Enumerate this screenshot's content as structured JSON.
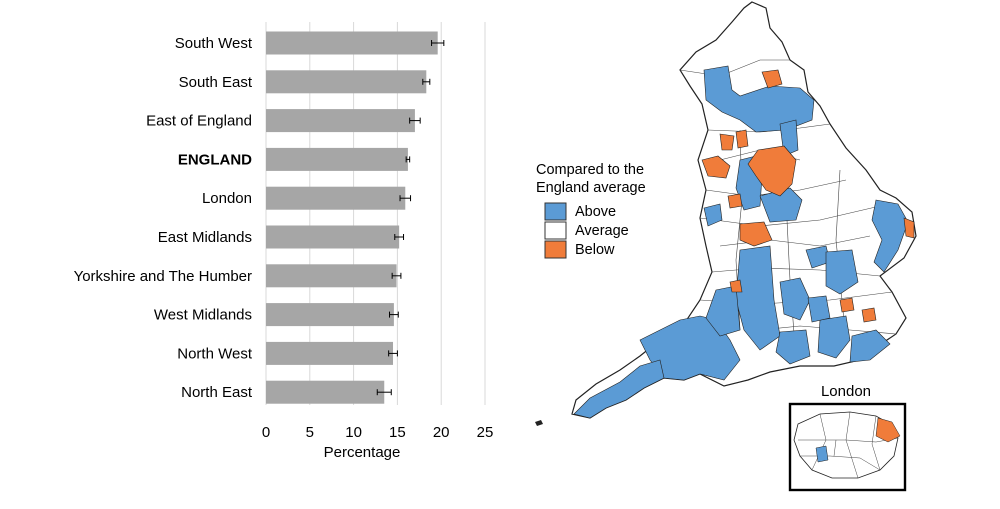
{
  "chart_data": {
    "type": "bar",
    "orientation": "horizontal",
    "categories": [
      "South West",
      "South East",
      "East of England",
      "ENGLAND",
      "London",
      "East Midlands",
      "Yorkshire and The Humber",
      "West Midlands",
      "North West",
      "North East"
    ],
    "highlight_category": "ENGLAND",
    "values": [
      19.6,
      18.3,
      17.0,
      16.2,
      15.9,
      15.2,
      14.9,
      14.6,
      14.5,
      13.5
    ],
    "error_margin": [
      0.7,
      0.4,
      0.6,
      0.2,
      0.6,
      0.5,
      0.5,
      0.5,
      0.5,
      0.8
    ],
    "xlabel": "Percentage",
    "xlim": [
      0,
      25
    ],
    "xticks": [
      0,
      5,
      10,
      15,
      20,
      25
    ],
    "grid": "vertical",
    "bar_color": "#a6a6a6"
  },
  "map": {
    "legend_title_line1": "Compared to the",
    "legend_title_line2": "England average",
    "legend_items": [
      {
        "label": "Above",
        "color": "#5b9bd5"
      },
      {
        "label": "Average",
        "color": "#ffffff"
      },
      {
        "label": "Below",
        "color": "#f07c3a"
      }
    ],
    "inset_title": "London"
  }
}
